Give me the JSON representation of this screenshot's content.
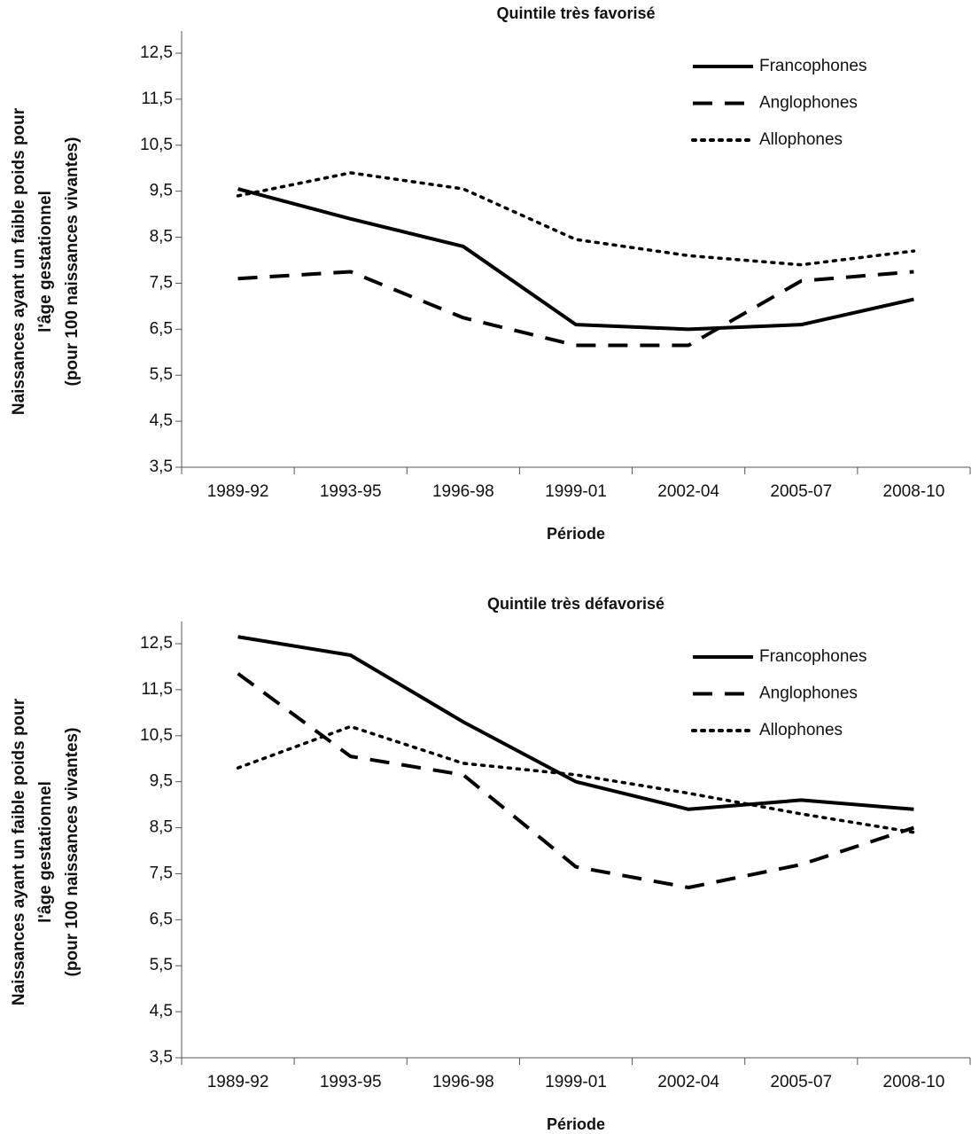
{
  "chart_data": [
    {
      "type": "line",
      "title": "Quintile très favorisé",
      "x_label": "Période",
      "y_label": [
        "Naissances ayant un faible poids pour",
        "l'âge gestationnel",
        "(pour 100 naissances vivantes)"
      ],
      "categories": [
        "1989-92",
        "1993-95",
        "1996-98",
        "1999-01",
        "2002-04",
        "2005-07",
        "2008-10"
      ],
      "series": [
        {
          "name": "Francophones",
          "color": "#000000",
          "style": "solid",
          "values": [
            9.55,
            8.9,
            8.3,
            6.6,
            6.5,
            6.6,
            7.15
          ]
        },
        {
          "name": "Anglophones",
          "color": "#000000",
          "style": "dashed",
          "values": [
            7.6,
            7.75,
            6.75,
            6.15,
            6.15,
            7.55,
            7.75
          ]
        },
        {
          "name": "Allophones",
          "color": "#000000",
          "style": "dotted",
          "values": [
            9.4,
            9.9,
            9.55,
            8.45,
            8.1,
            7.9,
            8.2
          ]
        }
      ],
      "ylim": [
        3.5,
        12.5
      ],
      "yticks": [
        {
          "value": 3.5,
          "label": "3,5"
        },
        {
          "value": 4.5,
          "label": "4,5"
        },
        {
          "value": 5.5,
          "label": "5,5"
        },
        {
          "value": 6.5,
          "label": "6,5"
        },
        {
          "value": 7.5,
          "label": "7,5"
        },
        {
          "value": 8.5,
          "label": "8,5"
        },
        {
          "value": 9.5,
          "label": "9,5"
        },
        {
          "value": 10.5,
          "label": "10,5"
        },
        {
          "value": 11.5,
          "label": "11,5"
        },
        {
          "value": 12.5,
          "label": "12,5"
        }
      ],
      "grid": false,
      "legend": "top-right"
    },
    {
      "type": "line",
      "title": "Quintile très défavorisé",
      "x_label": "Période",
      "y_label": [
        "Naissances ayant un faible poids pour",
        "l'âge gestationnel",
        "(pour 100 naissances vivantes)"
      ],
      "categories": [
        "1989-92",
        "1993-95",
        "1996-98",
        "1999-01",
        "2002-04",
        "2005-07",
        "2008-10"
      ],
      "series": [
        {
          "name": "Francophones",
          "color": "#000000",
          "style": "solid",
          "values": [
            12.65,
            12.25,
            10.8,
            9.5,
            8.9,
            9.1,
            8.9
          ]
        },
        {
          "name": "Anglophones",
          "color": "#000000",
          "style": "dashed",
          "values": [
            11.85,
            10.05,
            9.65,
            7.65,
            7.2,
            7.7,
            8.5
          ]
        },
        {
          "name": "Allophones",
          "color": "#000000",
          "style": "dotted",
          "values": [
            9.8,
            10.7,
            9.9,
            9.65,
            9.25,
            8.8,
            8.4
          ]
        }
      ],
      "ylim": [
        3.5,
        12.5
      ],
      "yticks": [
        {
          "value": 3.5,
          "label": "3,5"
        },
        {
          "value": 4.5,
          "label": "4,5"
        },
        {
          "value": 5.5,
          "label": "5,5"
        },
        {
          "value": 6.5,
          "label": "6,5"
        },
        {
          "value": 7.5,
          "label": "7,5"
        },
        {
          "value": 8.5,
          "label": "8,5"
        },
        {
          "value": 9.5,
          "label": "9,5"
        },
        {
          "value": 10.5,
          "label": "10,5"
        },
        {
          "value": 11.5,
          "label": "11,5"
        },
        {
          "value": 12.5,
          "label": "12,5"
        }
      ],
      "grid": false,
      "legend": "top-right"
    }
  ]
}
